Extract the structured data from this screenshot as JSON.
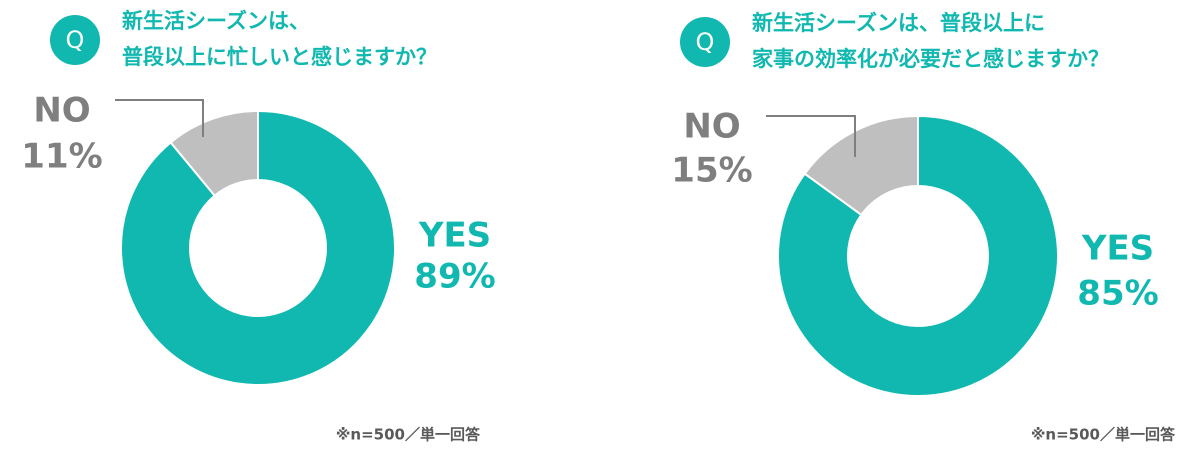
{
  "chart_data": [
    {
      "type": "donut",
      "badge": "Q",
      "title": [
        "新生活シーズンは、",
        "普段以上に忙しいと感じますか？"
      ],
      "categories": [
        "YES",
        "NO"
      ],
      "values": [
        89,
        11
      ],
      "value_labels": [
        "89%",
        "11%"
      ],
      "colors": [
        "#10b8b0",
        "#bfbfbf"
      ],
      "note": "※n=500／単一回答"
    },
    {
      "type": "donut",
      "badge": "Q",
      "title": [
        "新生活シーズンは、普段以上に",
        "家事の効率化が必要だと感じますか？"
      ],
      "categories": [
        "YES",
        "NO"
      ],
      "values": [
        85,
        15
      ],
      "value_labels": [
        "85%",
        "15%"
      ],
      "colors": [
        "#10b8b0",
        "#bfbfbf"
      ],
      "note": "※n=500／単一回答"
    }
  ]
}
